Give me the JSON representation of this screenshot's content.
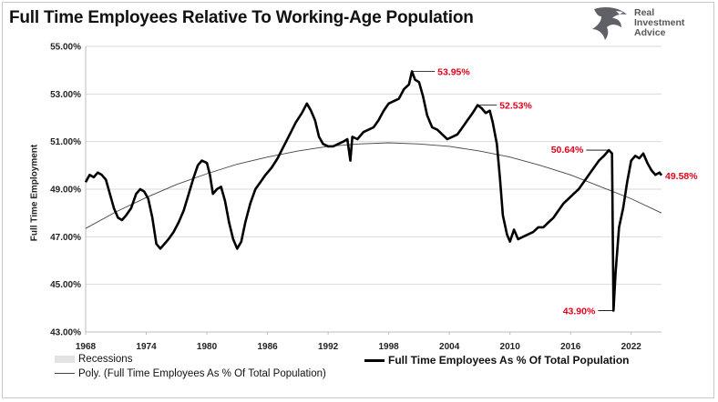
{
  "chart_data": {
    "type": "line",
    "title": "Full Time Employees Relative To Working-Age Population",
    "ylabel": "Full Time Employment",
    "xlabel": "",
    "xlim": [
      1968,
      2025
    ],
    "ylim": [
      43.0,
      55.0
    ],
    "y_ticks": [
      "43.00%",
      "45.00%",
      "47.00%",
      "49.00%",
      "51.00%",
      "53.00%",
      "55.00%"
    ],
    "x_ticks": [
      "1968",
      "1974",
      "1980",
      "1986",
      "1992",
      "1998",
      "2004",
      "2010",
      "2016",
      "2022"
    ],
    "grid": true,
    "legend_position": "bottom",
    "series": [
      {
        "name": "Full Time Employees As % Of Total Population",
        "color": "#000000",
        "points": [
          [
            1968.0,
            49.3
          ],
          [
            1968.4,
            49.6
          ],
          [
            1968.8,
            49.5
          ],
          [
            1969.2,
            49.7
          ],
          [
            1969.6,
            49.6
          ],
          [
            1970.0,
            49.4
          ],
          [
            1970.4,
            48.8
          ],
          [
            1970.8,
            48.2
          ],
          [
            1971.2,
            47.8
          ],
          [
            1971.6,
            47.7
          ],
          [
            1972.0,
            47.9
          ],
          [
            1972.5,
            48.2
          ],
          [
            1973.0,
            48.8
          ],
          [
            1973.4,
            49.0
          ],
          [
            1973.8,
            48.9
          ],
          [
            1974.2,
            48.6
          ],
          [
            1974.6,
            47.8
          ],
          [
            1975.0,
            46.7
          ],
          [
            1975.4,
            46.5
          ],
          [
            1975.8,
            46.7
          ],
          [
            1976.2,
            46.9
          ],
          [
            1976.7,
            47.2
          ],
          [
            1977.2,
            47.6
          ],
          [
            1977.7,
            48.1
          ],
          [
            1978.2,
            48.8
          ],
          [
            1978.7,
            49.5
          ],
          [
            1979.1,
            50.0
          ],
          [
            1979.5,
            50.2
          ],
          [
            1980.0,
            50.1
          ],
          [
            1980.3,
            49.6
          ],
          [
            1980.6,
            48.8
          ],
          [
            1981.0,
            49.0
          ],
          [
            1981.4,
            49.1
          ],
          [
            1981.8,
            48.5
          ],
          [
            1982.2,
            47.6
          ],
          [
            1982.6,
            46.9
          ],
          [
            1983.0,
            46.5
          ],
          [
            1983.4,
            46.8
          ],
          [
            1983.8,
            47.6
          ],
          [
            1984.3,
            48.4
          ],
          [
            1984.8,
            49.0
          ],
          [
            1985.3,
            49.3
          ],
          [
            1985.8,
            49.6
          ],
          [
            1986.4,
            49.9
          ],
          [
            1987.0,
            50.3
          ],
          [
            1987.6,
            50.8
          ],
          [
            1988.2,
            51.3
          ],
          [
            1988.8,
            51.8
          ],
          [
            1989.4,
            52.2
          ],
          [
            1989.9,
            52.6
          ],
          [
            1990.3,
            52.3
          ],
          [
            1990.7,
            51.9
          ],
          [
            1991.1,
            51.2
          ],
          [
            1991.5,
            50.9
          ],
          [
            1992.0,
            50.8
          ],
          [
            1992.5,
            50.8
          ],
          [
            1993.0,
            50.9
          ],
          [
            1993.5,
            51.0
          ],
          [
            1993.9,
            51.1
          ],
          [
            1994.2,
            50.2
          ],
          [
            1994.4,
            51.2
          ],
          [
            1994.9,
            51.1
          ],
          [
            1995.5,
            51.4
          ],
          [
            1996.0,
            51.5
          ],
          [
            1996.5,
            51.6
          ],
          [
            1997.0,
            51.9
          ],
          [
            1997.5,
            52.3
          ],
          [
            1998.0,
            52.6
          ],
          [
            1998.5,
            52.7
          ],
          [
            1999.0,
            52.8
          ],
          [
            1999.5,
            53.2
          ],
          [
            2000.0,
            53.4
          ],
          [
            2000.3,
            53.95
          ],
          [
            2000.6,
            53.6
          ],
          [
            2001.0,
            53.5
          ],
          [
            2001.4,
            52.9
          ],
          [
            2001.8,
            52.1
          ],
          [
            2002.3,
            51.6
          ],
          [
            2002.8,
            51.5
          ],
          [
            2003.3,
            51.3
          ],
          [
            2003.8,
            51.1
          ],
          [
            2004.3,
            51.2
          ],
          [
            2004.8,
            51.3
          ],
          [
            2005.3,
            51.6
          ],
          [
            2005.8,
            51.9
          ],
          [
            2006.3,
            52.2
          ],
          [
            2006.8,
            52.53
          ],
          [
            2007.2,
            52.4
          ],
          [
            2007.6,
            52.2
          ],
          [
            2008.0,
            52.3
          ],
          [
            2008.3,
            51.8
          ],
          [
            2008.7,
            50.9
          ],
          [
            2009.0,
            49.5
          ],
          [
            2009.3,
            47.9
          ],
          [
            2009.7,
            47.1
          ],
          [
            2010.0,
            46.8
          ],
          [
            2010.4,
            47.3
          ],
          [
            2010.8,
            46.9
          ],
          [
            2011.3,
            47.0
          ],
          [
            2011.8,
            47.1
          ],
          [
            2012.3,
            47.2
          ],
          [
            2012.8,
            47.4
          ],
          [
            2013.3,
            47.4
          ],
          [
            2013.8,
            47.6
          ],
          [
            2014.3,
            47.8
          ],
          [
            2014.8,
            48.1
          ],
          [
            2015.3,
            48.4
          ],
          [
            2015.8,
            48.6
          ],
          [
            2016.3,
            48.8
          ],
          [
            2016.8,
            49.0
          ],
          [
            2017.3,
            49.3
          ],
          [
            2017.8,
            49.6
          ],
          [
            2018.3,
            49.9
          ],
          [
            2018.8,
            50.2
          ],
          [
            2019.3,
            50.4
          ],
          [
            2019.8,
            50.64
          ],
          [
            2020.1,
            50.5
          ],
          [
            2020.25,
            43.9
          ],
          [
            2020.45,
            45.5
          ],
          [
            2020.8,
            47.4
          ],
          [
            2021.2,
            48.2
          ],
          [
            2021.6,
            49.3
          ],
          [
            2022.0,
            50.2
          ],
          [
            2022.4,
            50.4
          ],
          [
            2022.8,
            50.3
          ],
          [
            2023.2,
            50.5
          ],
          [
            2023.6,
            50.1
          ],
          [
            2024.0,
            49.8
          ],
          [
            2024.4,
            49.6
          ],
          [
            2024.8,
            49.7
          ],
          [
            2025.0,
            49.58
          ]
        ]
      },
      {
        "name": "Poly. (Full Time Employees As % Of Total Population)",
        "color": "#444444",
        "points": [
          [
            1968,
            47.35
          ],
          [
            1971,
            48.05
          ],
          [
            1974,
            48.65
          ],
          [
            1977,
            49.2
          ],
          [
            1980,
            49.65
          ],
          [
            1983,
            50.05
          ],
          [
            1986,
            50.35
          ],
          [
            1989,
            50.6
          ],
          [
            1992,
            50.8
          ],
          [
            1995,
            50.9
          ],
          [
            1998,
            50.95
          ],
          [
            2001,
            50.9
          ],
          [
            2004,
            50.8
          ],
          [
            2007,
            50.6
          ],
          [
            2010,
            50.35
          ],
          [
            2013,
            50.0
          ],
          [
            2016,
            49.6
          ],
          [
            2019,
            49.1
          ],
          [
            2022,
            48.6
          ],
          [
            2025,
            48.0
          ]
        ]
      }
    ],
    "recessions_label": "Recessions",
    "annotations": [
      {
        "text": "53.95%",
        "x": 2000.3,
        "y": 53.95
      },
      {
        "text": "52.53%",
        "x": 2006.8,
        "y": 52.53
      },
      {
        "text": "50.64%",
        "x": 2019.8,
        "y": 50.64
      },
      {
        "text": "49.58%",
        "x": 2025.0,
        "y": 49.58
      },
      {
        "text": "43.90%",
        "x": 2020.25,
        "y": 43.9
      }
    ],
    "annotation_color": "#e3001b"
  },
  "logo": {
    "line1": "Real",
    "line2": "Investment",
    "line3": "Advice"
  }
}
